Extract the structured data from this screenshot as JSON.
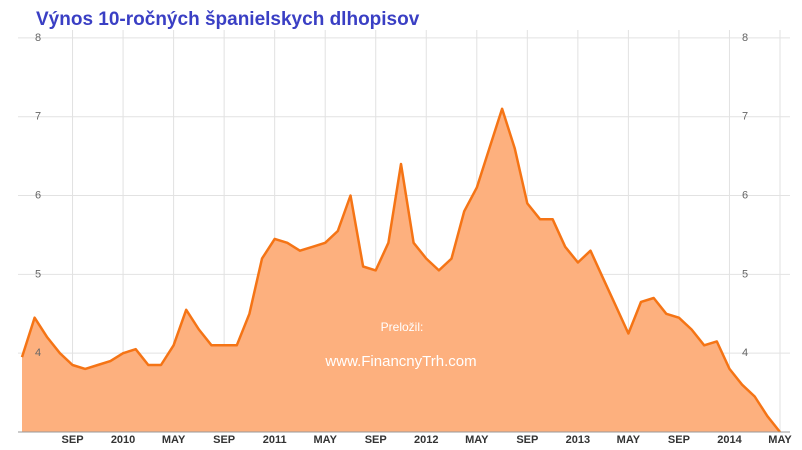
{
  "chart_data": {
    "type": "area",
    "title": "Výnos 10-ročných španielskych dlhopisov",
    "annotations": [
      "Preložil:",
      "www.FinancnyTrh.com"
    ],
    "categories": [
      null,
      null,
      null,
      null,
      "SEP",
      null,
      null,
      null,
      "2010",
      null,
      null,
      null,
      "MAY",
      null,
      null,
      null,
      "SEP",
      null,
      null,
      null,
      "2011",
      null,
      null,
      null,
      "MAY",
      null,
      null,
      null,
      "SEP",
      null,
      null,
      null,
      "2012",
      null,
      null,
      null,
      "MAY",
      null,
      null,
      null,
      "SEP",
      null,
      null,
      null,
      "2013",
      null,
      null,
      null,
      "MAY",
      null,
      null,
      null,
      "SEP",
      null,
      null,
      null,
      "2014",
      null,
      null,
      null,
      "MAY"
    ],
    "values": [
      3.95,
      4.45,
      4.2,
      4.0,
      3.85,
      3.8,
      3.85,
      3.9,
      4.0,
      4.05,
      3.85,
      3.85,
      4.1,
      4.55,
      4.3,
      4.1,
      4.1,
      4.1,
      4.5,
      5.2,
      5.45,
      5.4,
      5.3,
      5.35,
      5.4,
      5.55,
      6.0,
      5.1,
      5.05,
      5.4,
      6.4,
      5.4,
      5.2,
      5.05,
      5.2,
      5.8,
      6.1,
      6.6,
      7.1,
      6.6,
      5.9,
      5.7,
      5.7,
      5.35,
      5.15,
      5.3,
      4.95,
      4.6,
      4.25,
      4.65,
      4.7,
      4.5,
      4.45,
      4.3,
      4.1,
      4.15,
      3.8,
      3.6,
      3.45,
      3.2,
      3.0
    ],
    "color": "#f57415",
    "fill": "#fdb07e",
    "ylim": [
      3,
      8.1
    ],
    "yticks": [
      4,
      5,
      6,
      7,
      8
    ],
    "grid": true
  }
}
